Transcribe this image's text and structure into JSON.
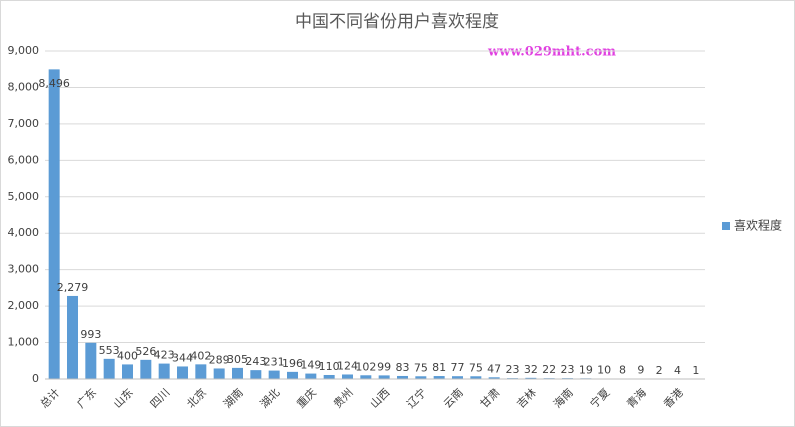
{
  "chart_data": {
    "type": "bar",
    "title": "中国不同省份用户喜欢程度",
    "watermark": "www.029mht.com",
    "categories": [
      "总计",
      null,
      "广东",
      null,
      "山东",
      null,
      "四川",
      null,
      "北京",
      null,
      "湖南",
      null,
      "湖北",
      null,
      "重庆",
      null,
      "贵州",
      null,
      "山西",
      null,
      "辽宁",
      null,
      "云南",
      null,
      "甘肃",
      null,
      "吉林",
      null,
      "海南",
      null,
      "宁夏",
      null,
      "青海",
      null,
      "香港",
      null
    ],
    "series": [
      {
        "name": "喜欢程度",
        "color": "#5b9bd5",
        "values": [
          8496,
          2279,
          993,
          553,
          400,
          526,
          423,
          344,
          402,
          289,
          305,
          243,
          231,
          196,
          149,
          110,
          124,
          102,
          99,
          83,
          75,
          81,
          77,
          75,
          47,
          23,
          32,
          22,
          23,
          19,
          10,
          8,
          9,
          2,
          4,
          1
        ],
        "value_labels": [
          "8,496",
          "2,279",
          "993",
          "553",
          "400",
          "526",
          "423",
          "344",
          "402",
          "289",
          "305",
          "243",
          "231",
          "196",
          "149",
          "110",
          "124",
          "102",
          "99",
          "83",
          "75",
          "81",
          "77",
          "75",
          "47",
          "23",
          "32",
          "22",
          "23",
          "19",
          "10",
          "8",
          "9",
          "2",
          "4",
          "1"
        ]
      }
    ],
    "ylim": [
      0,
      9000
    ],
    "yticks": [
      0,
      {
        "value": 1000,
        "label": "1,000"
      },
      {
        "value": 2000,
        "label": "2,000"
      },
      {
        "value": 3000,
        "label": "3,000"
      },
      {
        "value": 4000,
        "label": "4,000"
      },
      {
        "value": 5000,
        "label": "5,000"
      },
      {
        "value": 6000,
        "label": "6,000"
      },
      {
        "value": 7000,
        "label": "7,000"
      },
      {
        "value": 8000,
        "label": "8,000"
      },
      {
        "value": 9000,
        "label": "9,000"
      }
    ],
    "grid": true,
    "legend": "right"
  }
}
